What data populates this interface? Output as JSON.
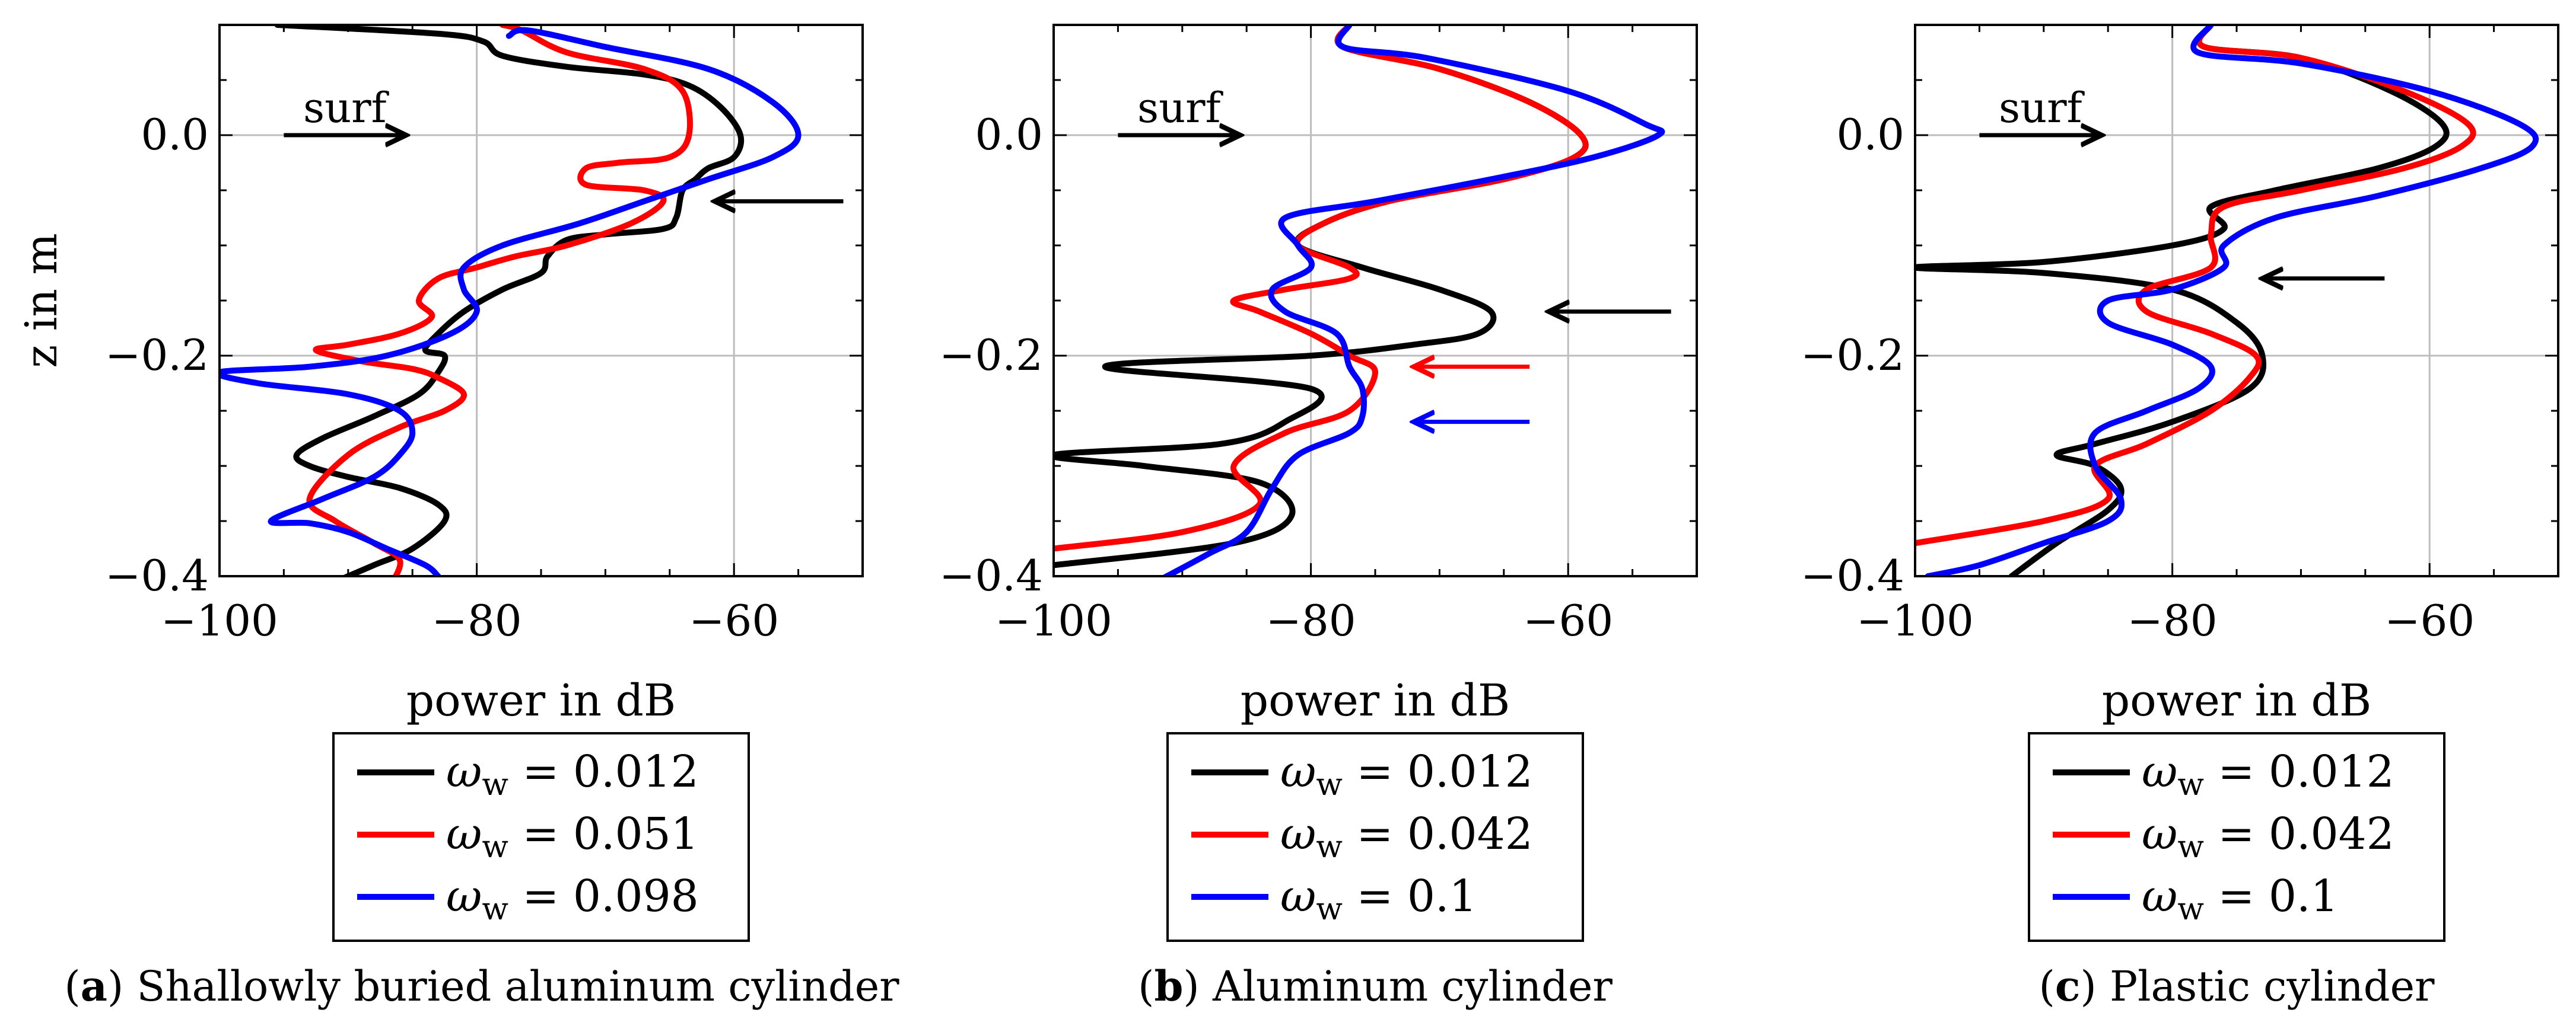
{
  "chart_data": [
    {
      "type": "line",
      "panel_label": "a",
      "caption": "Shallowly buried aluminum cylinder",
      "ylabel": "z in m",
      "xlabel": "power in dB",
      "xlim": [
        -100,
        -50
      ],
      "ylim": [
        -0.4,
        0.1
      ],
      "xticks": [
        -100,
        -80,
        -60
      ],
      "xtick_labels": [
        "−100",
        "−80",
        "−60"
      ],
      "yticks": [
        -0.4,
        -0.2,
        0.0
      ],
      "ytick_labels": [
        "−0.4",
        "−0.2",
        "0.0"
      ],
      "grid": true,
      "legend_position": "below",
      "series": [
        {
          "name_sym": "ω",
          "name_sub": "w",
          "name_val": "= 0.012",
          "color": "#000000",
          "x": [
            -95.5,
            -83,
            -79.5,
            -78,
            -73,
            -67,
            -63.5,
            -61,
            -59.5,
            -60,
            -62,
            -63,
            -64,
            -64.5,
            -65.5,
            -70,
            -73,
            -74.5,
            -75,
            -78,
            -81,
            -83,
            -84,
            -82.5,
            -83,
            -84.5,
            -88,
            -92,
            -94,
            -93,
            -90,
            -86,
            -83,
            -82.5,
            -85,
            -88,
            -91
          ],
          "y": [
            0.1,
            0.092,
            0.085,
            0.072,
            0.062,
            0.055,
            0.045,
            0.025,
            0.0,
            -0.02,
            -0.03,
            -0.04,
            -0.05,
            -0.075,
            -0.085,
            -0.09,
            -0.095,
            -0.11,
            -0.125,
            -0.14,
            -0.16,
            -0.18,
            -0.195,
            -0.2,
            -0.215,
            -0.235,
            -0.255,
            -0.275,
            -0.29,
            -0.3,
            -0.31,
            -0.32,
            -0.335,
            -0.35,
            -0.375,
            -0.39,
            -0.405
          ]
        },
        {
          "name_sym": "ω",
          "name_sub": "w",
          "name_val": "= 0.051",
          "color": "#ff0000",
          "x": [
            -78,
            -76.5,
            -73,
            -67,
            -64,
            -63.5,
            -65,
            -69,
            -71.5,
            -71.5,
            -67,
            -65.5,
            -68,
            -73,
            -77,
            -80,
            -83,
            -84.5,
            -83.5,
            -86,
            -90,
            -92.5,
            -89,
            -85,
            -83,
            -81,
            -82.5,
            -86,
            -90,
            -93,
            -91,
            -88,
            -86,
            -86.5
          ],
          "y": [
            0.1,
            0.095,
            0.075,
            0.06,
            0.04,
            0.0,
            -0.02,
            -0.025,
            -0.03,
            -0.045,
            -0.05,
            -0.06,
            -0.08,
            -0.1,
            -0.11,
            -0.12,
            -0.13,
            -0.15,
            -0.165,
            -0.18,
            -0.19,
            -0.195,
            -0.205,
            -0.212,
            -0.22,
            -0.235,
            -0.25,
            -0.265,
            -0.29,
            -0.33,
            -0.35,
            -0.37,
            -0.385,
            -0.405
          ]
        },
        {
          "name_sym": "ω",
          "name_sub": "w",
          "name_val": "= 0.098",
          "color": "#0000ff",
          "x": [
            -77.5,
            -76,
            -70,
            -62,
            -57,
            -55,
            -57,
            -62,
            -67,
            -72,
            -78,
            -81,
            -81,
            -80,
            -82,
            -87,
            -93,
            -100,
            -97,
            -90,
            -86,
            -85,
            -86,
            -88,
            -92,
            -96,
            -93,
            -90,
            -87,
            -84,
            -83
          ],
          "y": [
            0.09,
            0.095,
            0.08,
            0.06,
            0.03,
            0.0,
            -0.02,
            -0.04,
            -0.06,
            -0.08,
            -0.1,
            -0.12,
            -0.14,
            -0.16,
            -0.18,
            -0.2,
            -0.21,
            -0.215,
            -0.225,
            -0.235,
            -0.25,
            -0.27,
            -0.29,
            -0.31,
            -0.33,
            -0.35,
            -0.352,
            -0.36,
            -0.375,
            -0.39,
            -0.4
          ]
        }
      ],
      "annotations": [
        {
          "type": "arrow",
          "text": "surf",
          "from": [
            -95,
            0.0
          ],
          "to": [
            -85.5,
            0.0
          ],
          "color": "#000000"
        },
        {
          "type": "arrow",
          "text": "",
          "from": [
            -51.5,
            -0.06
          ],
          "to": [
            -61.5,
            -0.06
          ],
          "color": "#000000"
        }
      ]
    },
    {
      "type": "line",
      "panel_label": "b",
      "caption": "Aluminum cylinder",
      "ylabel": "",
      "xlabel": "power in dB",
      "xlim": [
        -100,
        -50
      ],
      "ylim": [
        -0.4,
        0.1
      ],
      "xticks": [
        -100,
        -80,
        -60
      ],
      "xtick_labels": [
        "−100",
        "−80",
        "−60"
      ],
      "yticks": [
        -0.4,
        -0.2,
        0.0
      ],
      "ytick_labels": [
        "−0.4",
        "−0.2",
        "0.0"
      ],
      "grid": true,
      "legend_position": "below",
      "series": [
        {
          "name_sym": "ω",
          "name_sub": "w",
          "name_val": "= 0.012",
          "color": "#000000",
          "x": [
            -77,
            -77.5,
            -70,
            -63,
            -59,
            -59.5,
            -65,
            -74,
            -79,
            -81,
            -76,
            -70,
            -66,
            -67,
            -72,
            -80,
            -96,
            -80,
            -82,
            -87,
            -100,
            -93,
            -84,
            -81.5,
            -86,
            -100
          ],
          "y": [
            0.1,
            0.08,
            0.06,
            0.03,
            0.0,
            -0.02,
            -0.04,
            -0.06,
            -0.08,
            -0.1,
            -0.12,
            -0.14,
            -0.16,
            -0.18,
            -0.19,
            -0.2,
            -0.21,
            -0.23,
            -0.26,
            -0.28,
            -0.29,
            -0.3,
            -0.315,
            -0.345,
            -0.37,
            -0.39
          ]
        },
        {
          "name_sym": "ω",
          "name_sub": "w",
          "name_val": "= 0.042",
          "color": "#ff0000",
          "x": [
            -77,
            -77.5,
            -70,
            -63,
            -59,
            -59.5,
            -65,
            -74,
            -79,
            -81,
            -77,
            -77,
            -82,
            -86,
            -84,
            -80,
            -77,
            -75,
            -77,
            -82,
            -86,
            -84,
            -90,
            -100
          ],
          "y": [
            0.1,
            0.08,
            0.06,
            0.03,
            0.0,
            -0.02,
            -0.04,
            -0.06,
            -0.08,
            -0.1,
            -0.12,
            -0.13,
            -0.14,
            -0.15,
            -0.16,
            -0.18,
            -0.2,
            -0.215,
            -0.25,
            -0.27,
            -0.3,
            -0.335,
            -0.36,
            -0.375
          ]
        },
        {
          "name_sym": "ω",
          "name_sub": "w",
          "name_val": "= 0.1",
          "color": "#0000ff",
          "x": [
            -77,
            -77.5,
            -71,
            -60,
            -54,
            -53,
            -58,
            -66,
            -75,
            -82,
            -81,
            -80,
            -83,
            -82,
            -78,
            -77,
            -76,
            -76,
            -77,
            -81,
            -83,
            -85,
            -88,
            -92
          ],
          "y": [
            0.1,
            0.08,
            0.07,
            0.04,
            0.01,
            0.0,
            -0.02,
            -0.04,
            -0.06,
            -0.075,
            -0.1,
            -0.12,
            -0.14,
            -0.16,
            -0.18,
            -0.21,
            -0.23,
            -0.255,
            -0.27,
            -0.29,
            -0.32,
            -0.36,
            -0.38,
            -0.405
          ]
        }
      ],
      "annotations": [
        {
          "type": "arrow",
          "text": "surf",
          "from": [
            -95,
            0.0
          ],
          "to": [
            -85.5,
            0.0
          ],
          "color": "#000000"
        },
        {
          "type": "arrow",
          "text": "",
          "from": [
            -52,
            -0.16
          ],
          "to": [
            -61.5,
            -0.16
          ],
          "color": "#000000"
        },
        {
          "type": "arrow",
          "text": "",
          "from": [
            -63,
            -0.21
          ],
          "to": [
            -72,
            -0.21
          ],
          "color": "#ff0000"
        },
        {
          "type": "arrow",
          "text": "",
          "from": [
            -63,
            -0.26
          ],
          "to": [
            -72,
            -0.26
          ],
          "color": "#0000ff"
        }
      ]
    },
    {
      "type": "line",
      "panel_label": "c",
      "caption": "Plastic cylinder",
      "ylabel": "",
      "xlabel": "power in dB",
      "xlim": [
        -100,
        -50
      ],
      "ylim": [
        -0.4,
        0.1
      ],
      "xticks": [
        -100,
        -80,
        -60
      ],
      "xtick_labels": [
        "−100",
        "−80",
        "−60"
      ],
      "yticks": [
        -0.4,
        -0.2,
        0.0
      ],
      "ytick_labels": [
        "−0.4",
        "−0.2",
        "0.0"
      ],
      "grid": true,
      "legend_position": "below",
      "series": [
        {
          "name_sym": "ω",
          "name_sub": "w",
          "name_val": "= 0.012",
          "color": "#000000",
          "x": [
            -77,
            -77.5,
            -70,
            -63,
            -59,
            -59.5,
            -64,
            -72,
            -77,
            -76,
            -80,
            -90,
            -100,
            -90,
            -80,
            -75,
            -73,
            -74,
            -80,
            -86,
            -89,
            -86,
            -84,
            -85,
            -89,
            -92.5
          ],
          "y": [
            0.1,
            0.08,
            0.07,
            0.04,
            0.01,
            -0.01,
            -0.03,
            -0.05,
            -0.065,
            -0.085,
            -0.1,
            -0.115,
            -0.12,
            -0.125,
            -0.14,
            -0.17,
            -0.2,
            -0.23,
            -0.26,
            -0.28,
            -0.29,
            -0.3,
            -0.32,
            -0.34,
            -0.37,
            -0.4
          ]
        },
        {
          "name_sym": "ω",
          "name_sub": "w",
          "name_val": "= 0.042",
          "color": "#ff0000",
          "x": [
            -77,
            -77.5,
            -70,
            -62,
            -57,
            -57.5,
            -62,
            -70,
            -76,
            -77,
            -77,
            -82,
            -82,
            -77,
            -73.5,
            -74,
            -77,
            -82,
            -86,
            -85,
            -90,
            -100
          ],
          "y": [
            0.1,
            0.08,
            0.07,
            0.04,
            0.01,
            -0.01,
            -0.03,
            -0.05,
            -0.065,
            -0.09,
            -0.12,
            -0.14,
            -0.16,
            -0.18,
            -0.2,
            -0.22,
            -0.25,
            -0.28,
            -0.3,
            -0.33,
            -0.35,
            -0.37
          ]
        },
        {
          "name_sym": "ω",
          "name_sub": "w",
          "name_val": "= 0.1",
          "color": "#0000ff",
          "x": [
            -77,
            -78,
            -70,
            -60,
            -53,
            -52,
            -56,
            -64,
            -72,
            -76,
            -76,
            -80,
            -85,
            -85,
            -80,
            -77,
            -78,
            -82,
            -86,
            -86,
            -84,
            -85,
            -90,
            -95,
            -99
          ],
          "y": [
            0.1,
            0.075,
            0.065,
            0.04,
            0.01,
            -0.01,
            -0.03,
            -0.055,
            -0.075,
            -0.1,
            -0.12,
            -0.14,
            -0.15,
            -0.17,
            -0.19,
            -0.21,
            -0.23,
            -0.25,
            -0.27,
            -0.3,
            -0.33,
            -0.35,
            -0.37,
            -0.39,
            -0.4
          ]
        }
      ],
      "annotations": [
        {
          "type": "arrow",
          "text": "surf",
          "from": [
            -95,
            0.0
          ],
          "to": [
            -85.5,
            0.0
          ],
          "color": "#000000"
        },
        {
          "type": "arrow",
          "text": "",
          "from": [
            -63.5,
            -0.13
          ],
          "to": [
            -73,
            -0.13
          ],
          "color": "#000000"
        }
      ]
    }
  ]
}
